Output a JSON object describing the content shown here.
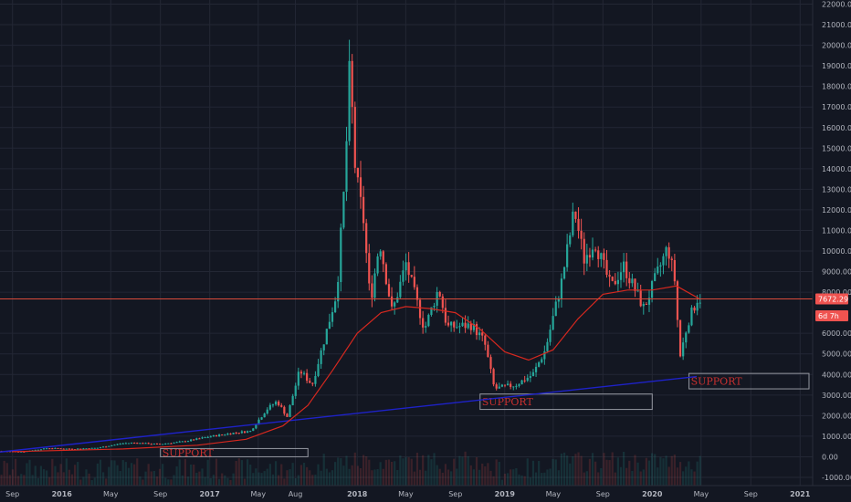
{
  "chart_data": {
    "type": "candlestick",
    "x_range": [
      "2015-08-01",
      "2021-02-01"
    ],
    "y_range": [
      -1400,
      22200
    ],
    "grid": true,
    "colors": {
      "background": "#131722",
      "grid": "#232734",
      "up": "#26a69a",
      "down": "#ef5350",
      "ma": "#d6281f",
      "trendline": "#1e22c8",
      "price_line": "#d94a3a",
      "annotation": "#9598a1"
    },
    "y_ticks": [
      22000,
      21000,
      20000,
      19000,
      18000,
      17000,
      16000,
      15000,
      14000,
      13000,
      12000,
      11000,
      10000,
      9000,
      8000,
      6000,
      5000,
      4000,
      3000,
      2000,
      1000,
      0,
      -1000
    ],
    "y_tick_labels": [
      "22000.00",
      "21000.00",
      "20000.00",
      "19000.00",
      "18000.00",
      "17000.00",
      "16000.00",
      "15000.00",
      "14000.00",
      "13000.00",
      "12000.00",
      "11000.00",
      "10000.00",
      "9000.00",
      "8000.00",
      "6000.00",
      "5000.00",
      "4000.00",
      "3000.00",
      "2000.00",
      "1000.00",
      "0.00",
      "-1000.00"
    ],
    "x_ticks": [
      {
        "label": "Sep",
        "date": "2015-09-01",
        "bold": false
      },
      {
        "label": "2016",
        "date": "2016-01-01",
        "bold": true
      },
      {
        "label": "May",
        "date": "2016-05-01",
        "bold": false
      },
      {
        "label": "Sep",
        "date": "2016-09-01",
        "bold": false
      },
      {
        "label": "2017",
        "date": "2017-01-01",
        "bold": true
      },
      {
        "label": "May",
        "date": "2017-05-01",
        "bold": false
      },
      {
        "label": "Aug",
        "date": "2017-08-01",
        "bold": false
      },
      {
        "label": "2018",
        "date": "2018-01-01",
        "bold": true
      },
      {
        "label": "May",
        "date": "2018-05-01",
        "bold": false
      },
      {
        "label": "Sep",
        "date": "2018-09-01",
        "bold": false
      },
      {
        "label": "2019",
        "date": "2019-01-01",
        "bold": true
      },
      {
        "label": "May",
        "date": "2019-05-01",
        "bold": false
      },
      {
        "label": "Sep",
        "date": "2019-09-01",
        "bold": false
      },
      {
        "label": "2020",
        "date": "2020-01-01",
        "bold": true
      },
      {
        "label": "May",
        "date": "2020-05-01",
        "bold": false
      },
      {
        "label": "Sep",
        "date": "2020-09-01",
        "bold": false
      },
      {
        "label": "2021",
        "date": "2021-01-01",
        "bold": true
      }
    ],
    "price_level": 7672.29,
    "price_tags": [
      {
        "label": "7672.29",
        "value": 7672.29
      },
      {
        "label": "6d 7h",
        "value": 6850
      }
    ],
    "price_path": [
      [
        "2015-08-01",
        280
      ],
      [
        "2015-10-01",
        250
      ],
      [
        "2015-12-01",
        420
      ],
      [
        "2016-02-01",
        380
      ],
      [
        "2016-04-01",
        430
      ],
      [
        "2016-06-01",
        650
      ],
      [
        "2016-07-01",
        680
      ],
      [
        "2016-09-01",
        610
      ],
      [
        "2016-11-01",
        740
      ],
      [
        "2017-01-01",
        970
      ],
      [
        "2017-03-01",
        1150
      ],
      [
        "2017-04-15",
        1250
      ],
      [
        "2017-05-25",
        2300
      ],
      [
        "2017-06-20",
        2700
      ],
      [
        "2017-07-15",
        1950
      ],
      [
        "2017-08-15",
        4200
      ],
      [
        "2017-09-15",
        3500
      ],
      [
        "2017-10-15",
        5700
      ],
      [
        "2017-11-15",
        8000
      ],
      [
        "2017-12-05",
        13500
      ],
      [
        "2017-12-17",
        19000
      ],
      [
        "2017-12-31",
        13800
      ],
      [
        "2018-01-20",
        11500
      ],
      [
        "2018-02-06",
        7500
      ],
      [
        "2018-03-01",
        10500
      ],
      [
        "2018-04-01",
        7000
      ],
      [
        "2018-05-05",
        9400
      ],
      [
        "2018-06-20",
        6200
      ],
      [
        "2018-07-25",
        8200
      ],
      [
        "2018-08-15",
        6300
      ],
      [
        "2018-10-15",
        6400
      ],
      [
        "2018-11-15",
        5600
      ],
      [
        "2018-12-10",
        3300
      ],
      [
        "2019-02-01",
        3500
      ],
      [
        "2019-03-15",
        4000
      ],
      [
        "2019-04-15",
        5200
      ],
      [
        "2019-05-25",
        8500
      ],
      [
        "2019-06-26",
        12000
      ],
      [
        "2019-07-20",
        9600
      ],
      [
        "2019-08-15",
        10500
      ],
      [
        "2019-09-25",
        8200
      ],
      [
        "2019-10-25",
        9300
      ],
      [
        "2019-12-15",
        7200
      ],
      [
        "2020-01-15",
        8800
      ],
      [
        "2020-02-12",
        10200
      ],
      [
        "2020-03-01",
        8500
      ],
      [
        "2020-03-13",
        4800
      ],
      [
        "2020-04-01",
        6500
      ],
      [
        "2020-04-25",
        7672
      ]
    ],
    "moving_average": [
      [
        "2015-09-01",
        250
      ],
      [
        "2016-06-01",
        380
      ],
      [
        "2016-12-01",
        560
      ],
      [
        "2017-04-01",
        850
      ],
      [
        "2017-07-01",
        1500
      ],
      [
        "2017-09-01",
        2500
      ],
      [
        "2017-11-01",
        4200
      ],
      [
        "2018-01-01",
        6000
      ],
      [
        "2018-03-01",
        7000
      ],
      [
        "2018-05-01",
        7300
      ],
      [
        "2018-07-01",
        7200
      ],
      [
        "2018-09-01",
        7000
      ],
      [
        "2018-11-01",
        6200
      ],
      [
        "2019-01-01",
        5100
      ],
      [
        "2019-03-01",
        4700
      ],
      [
        "2019-05-01",
        5200
      ],
      [
        "2019-07-01",
        6700
      ],
      [
        "2019-09-01",
        7900
      ],
      [
        "2019-11-01",
        8100
      ],
      [
        "2020-01-01",
        8100
      ],
      [
        "2020-03-01",
        8300
      ],
      [
        "2020-04-25",
        7700
      ]
    ],
    "trendline": [
      [
        "2015-08-01",
        230
      ],
      [
        "2020-04-20",
        3900
      ]
    ],
    "annotations": [
      {
        "text": "SUPPORT",
        "x0": "2016-09-01",
        "x1": "2017-09-01",
        "y0": 0,
        "y1": 400
      },
      {
        "text": "SUPPORT",
        "x0": "2018-11-01",
        "x1": "2020-01-01",
        "y0": 2300,
        "y1": 3050
      },
      {
        "text": "SUPPORT",
        "x0": "2020-04-01",
        "x1": "2021-02-01",
        "y0": 3300,
        "y1": 4050
      }
    ]
  }
}
